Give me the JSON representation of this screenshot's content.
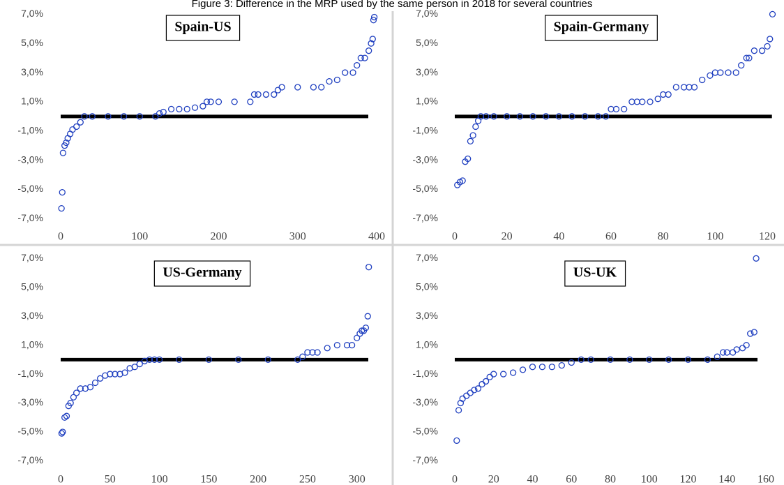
{
  "title": "Figure 3: Difference in the MRP used by the same person in 2018 for several countries",
  "chart_data": [
    {
      "type": "scatter",
      "title": "Spain-US",
      "color": "#2040c0",
      "hline": 0,
      "x": [
        1,
        2,
        3,
        5,
        7,
        9,
        12,
        15,
        20,
        25,
        30,
        40,
        60,
        80,
        100,
        120,
        125,
        130,
        140,
        150,
        160,
        170,
        180,
        185,
        190,
        200,
        220,
        240,
        245,
        250,
        260,
        270,
        275,
        280,
        300,
        320,
        330,
        340,
        350,
        360,
        370,
        375,
        380,
        385,
        390,
        393,
        395,
        396,
        397
      ],
      "values": [
        -6.3,
        -5.2,
        -2.5,
        -2.0,
        -1.8,
        -1.5,
        -1.2,
        -0.9,
        -0.7,
        -0.4,
        0,
        0,
        0,
        0,
        0,
        0,
        0.2,
        0.3,
        0.5,
        0.5,
        0.5,
        0.6,
        0.7,
        1.0,
        1.0,
        1.0,
        1.0,
        1.0,
        1.5,
        1.5,
        1.5,
        1.5,
        1.8,
        2.0,
        2.0,
        2.0,
        2.0,
        2.4,
        2.5,
        3.0,
        3.0,
        3.5,
        4.0,
        4.0,
        4.5,
        5.0,
        5.3,
        6.6,
        6.8
      ],
      "xlim": [
        0,
        400
      ],
      "xticks": [
        0,
        100,
        200,
        300,
        400
      ],
      "ylim": [
        -7.8,
        7.4
      ],
      "yticks": [
        {
          "value": 7,
          "label": "7,0%"
        },
        {
          "value": 5,
          "label": "5,0%"
        },
        {
          "value": 3,
          "label": "3,0%"
        },
        {
          "value": 1,
          "label": "1,0%"
        },
        {
          "value": -1,
          "label": "-1,0%"
        },
        {
          "value": -3,
          "label": "-3,0%"
        },
        {
          "value": -5,
          "label": "-5,0%"
        },
        {
          "value": -7,
          "label": "-7,0%"
        }
      ]
    },
    {
      "type": "scatter",
      "title": "Spain-Germany",
      "color": "#2040c0",
      "hline": 0,
      "x": [
        1,
        2,
        3,
        4,
        5,
        6,
        7,
        8,
        9,
        10,
        12,
        15,
        20,
        25,
        30,
        35,
        40,
        45,
        50,
        55,
        58,
        60,
        62,
        65,
        68,
        70,
        72,
        75,
        78,
        80,
        82,
        85,
        88,
        90,
        92,
        95,
        98,
        100,
        102,
        105,
        108,
        110,
        112,
        113,
        115,
        118,
        120,
        121,
        122
      ],
      "values": [
        -4.7,
        -4.5,
        -4.4,
        -3.1,
        -2.9,
        -1.7,
        -1.3,
        -0.7,
        -0.3,
        0,
        0,
        0,
        0,
        0,
        0,
        0,
        0,
        0,
        0,
        0,
        0,
        0.5,
        0.5,
        0.5,
        1.0,
        1.0,
        1.0,
        1.0,
        1.2,
        1.5,
        1.5,
        2.0,
        2.0,
        2.0,
        2.0,
        2.5,
        2.8,
        3.0,
        3.0,
        3.0,
        3.0,
        3.5,
        4.0,
        4.0,
        4.5,
        4.5,
        4.8,
        5.3,
        7.0
      ],
      "xlim": [
        0,
        125
      ],
      "xticks": [
        0,
        20,
        40,
        60,
        80,
        100,
        120
      ],
      "ylim": [
        -7.8,
        7.4
      ],
      "yticks": [
        {
          "value": 7,
          "label": "7,0%"
        },
        {
          "value": 5,
          "label": "5,0%"
        },
        {
          "value": 3,
          "label": "3,0%"
        },
        {
          "value": 1,
          "label": "1,0%"
        },
        {
          "value": -1,
          "label": "-1,0%"
        },
        {
          "value": -3,
          "label": "-3,0%"
        },
        {
          "value": -5,
          "label": "-5,0%"
        },
        {
          "value": -7,
          "label": "-7,0%"
        }
      ]
    },
    {
      "type": "scatter",
      "title": "US-Germany",
      "color": "#2040c0",
      "hline": 0,
      "x": [
        1,
        2,
        4,
        6,
        8,
        10,
        13,
        16,
        20,
        25,
        30,
        35,
        40,
        45,
        50,
        55,
        60,
        65,
        70,
        75,
        80,
        85,
        90,
        95,
        100,
        120,
        150,
        180,
        210,
        240,
        245,
        250,
        255,
        260,
        270,
        280,
        290,
        295,
        300,
        303,
        305,
        307,
        309,
        311,
        312
      ],
      "values": [
        -5.1,
        -5.0,
        -4.0,
        -3.9,
        -3.2,
        -3.0,
        -2.6,
        -2.3,
        -2.0,
        -2.0,
        -1.9,
        -1.6,
        -1.3,
        -1.1,
        -1.0,
        -1.0,
        -1.0,
        -0.9,
        -0.6,
        -0.5,
        -0.3,
        -0.1,
        0,
        0,
        0,
        0,
        0,
        0,
        0,
        0,
        0.2,
        0.5,
        0.5,
        0.5,
        0.8,
        1.0,
        1.0,
        1.0,
        1.5,
        1.8,
        2.0,
        2.0,
        2.2,
        3.0,
        6.4
      ],
      "xlim": [
        0,
        320
      ],
      "xticks": [
        0,
        50,
        100,
        150,
        200,
        250,
        300
      ],
      "ylim": [
        -7.8,
        7.4
      ],
      "yticks": [
        {
          "value": 7,
          "label": "7,0%"
        },
        {
          "value": 5,
          "label": "5,0%"
        },
        {
          "value": 3,
          "label": "3,0%"
        },
        {
          "value": 1,
          "label": "1,0%"
        },
        {
          "value": -1,
          "label": "-1,0%"
        },
        {
          "value": -3,
          "label": "-3,0%"
        },
        {
          "value": -5,
          "label": "-5,0%"
        },
        {
          "value": -7,
          "label": "-7,0%"
        }
      ]
    },
    {
      "type": "scatter",
      "title": "US-UK",
      "color": "#2040c0",
      "hline": 0,
      "x": [
        1,
        2,
        3,
        4,
        6,
        8,
        10,
        12,
        14,
        16,
        18,
        20,
        25,
        30,
        35,
        40,
        45,
        50,
        55,
        60,
        65,
        70,
        80,
        90,
        100,
        110,
        120,
        130,
        135,
        138,
        140,
        143,
        145,
        148,
        150,
        152,
        154,
        155
      ],
      "values": [
        -5.6,
        -3.5,
        -3.0,
        -2.7,
        -2.5,
        -2.3,
        -2.1,
        -2.0,
        -1.7,
        -1.5,
        -1.2,
        -1.0,
        -1.0,
        -0.9,
        -0.7,
        -0.5,
        -0.5,
        -0.5,
        -0.4,
        -0.2,
        0,
        0,
        0,
        0,
        0,
        0,
        0,
        0,
        0.2,
        0.5,
        0.5,
        0.5,
        0.7,
        0.8,
        1.0,
        1.8,
        1.9,
        7.0
      ],
      "xlim": [
        0,
        160
      ],
      "xticks": [
        0,
        20,
        40,
        60,
        80,
        100,
        120,
        140,
        160
      ],
      "ylim": [
        -7.8,
        7.4
      ],
      "yticks": [
        {
          "value": 7,
          "label": "7,0%"
        },
        {
          "value": 5,
          "label": "5,0%"
        },
        {
          "value": 3,
          "label": "3,0%"
        },
        {
          "value": 1,
          "label": "1,0%"
        },
        {
          "value": -1,
          "label": "-1,0%"
        },
        {
          "value": -3,
          "label": "-3,0%"
        },
        {
          "value": -5,
          "label": "-5,0%"
        },
        {
          "value": -7,
          "label": "-7,0%"
        }
      ]
    }
  ]
}
